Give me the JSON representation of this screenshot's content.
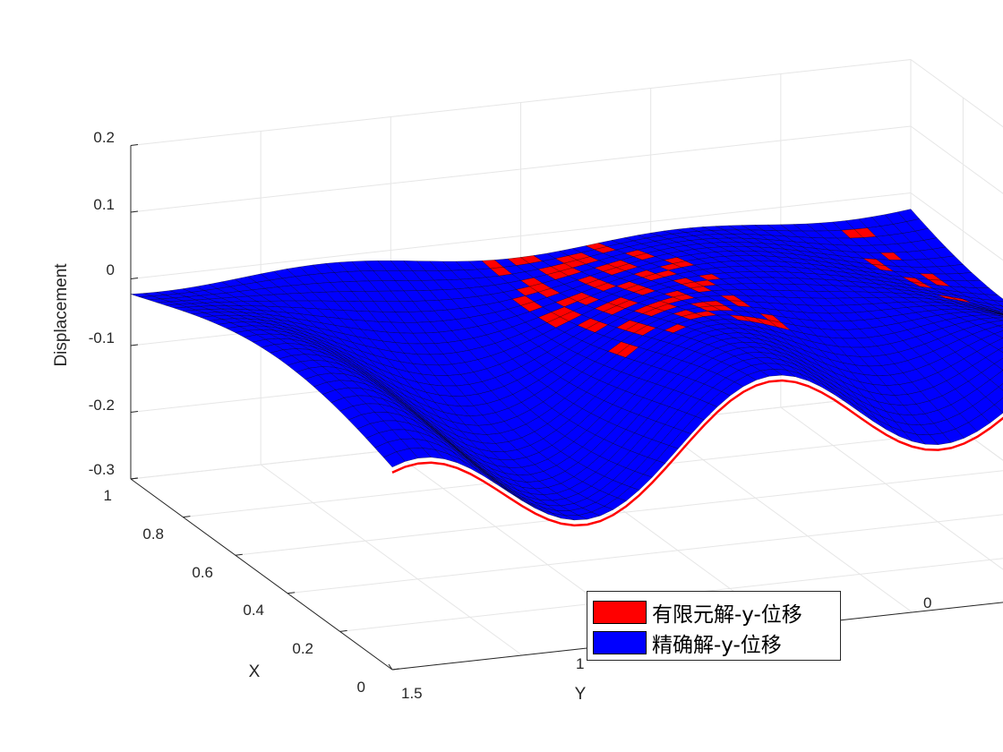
{
  "chart_data": {
    "type": "surface3d",
    "title": "",
    "xlabel": "X",
    "ylabel": "Y",
    "zlabel": "Displacement",
    "xlim": [
      0,
      1
    ],
    "ylim": [
      0,
      1.5
    ],
    "zlim": [
      -0.3,
      0.2
    ],
    "x_ticks": [
      "0",
      "0.2",
      "0.4",
      "0.6",
      "0.8",
      "1"
    ],
    "y_ticks": [
      "0",
      "1",
      "1.5"
    ],
    "z_ticks": [
      "-0.3",
      "-0.2",
      "-0.1",
      "0",
      "0.1",
      "0.2"
    ],
    "grid": true,
    "legend_position": "bottom-right",
    "series": [
      {
        "name": "有限元解-y-位移",
        "color": "#ff0000"
      },
      {
        "name": "精确解-y-位移",
        "color": "#0000ff"
      }
    ]
  }
}
